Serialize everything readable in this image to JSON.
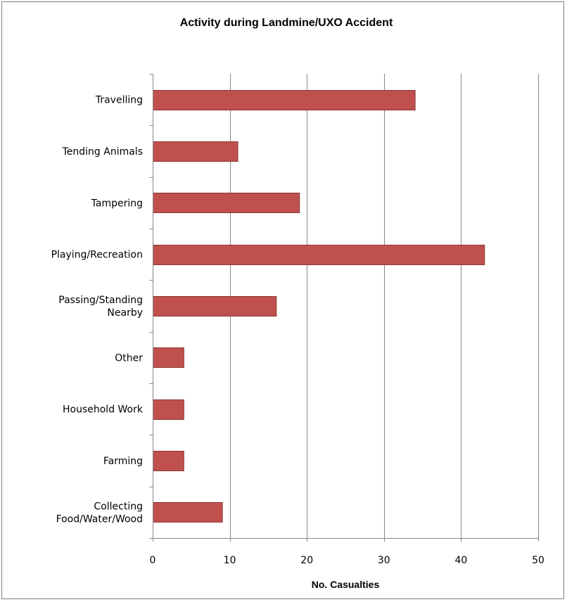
{
  "chart_data": {
    "type": "bar",
    "orientation": "horizontal",
    "title": "Activity during Landmine/UXO Accident",
    "xlabel": "No. Casualties",
    "ylabel": "",
    "categories": [
      "Travelling",
      "Tending Animals",
      "Tampering",
      "Playing/Recreation",
      "Passing/Standing Nearby",
      "Other",
      "Household Work",
      "Farming",
      "Collecting Food/Water/Wood"
    ],
    "category_lines": [
      [
        "Travelling"
      ],
      [
        "Tending Animals"
      ],
      [
        "Tampering"
      ],
      [
        "Playing/Recreation"
      ],
      [
        "Passing/Standing",
        "Nearby"
      ],
      [
        "Other"
      ],
      [
        "Household Work"
      ],
      [
        "Farming"
      ],
      [
        "Collecting",
        "Food/Water/Wood"
      ]
    ],
    "values": [
      34,
      11,
      19,
      43,
      16,
      4,
      4,
      4,
      9
    ],
    "xlim": [
      0,
      50
    ],
    "xticks": [
      0,
      10,
      20,
      30,
      40,
      50
    ],
    "grid": "vertical",
    "legend": "none",
    "bar_color": "#c0504d",
    "bar_edge_color": "#8c3836",
    "gridline_color": "#868686"
  }
}
